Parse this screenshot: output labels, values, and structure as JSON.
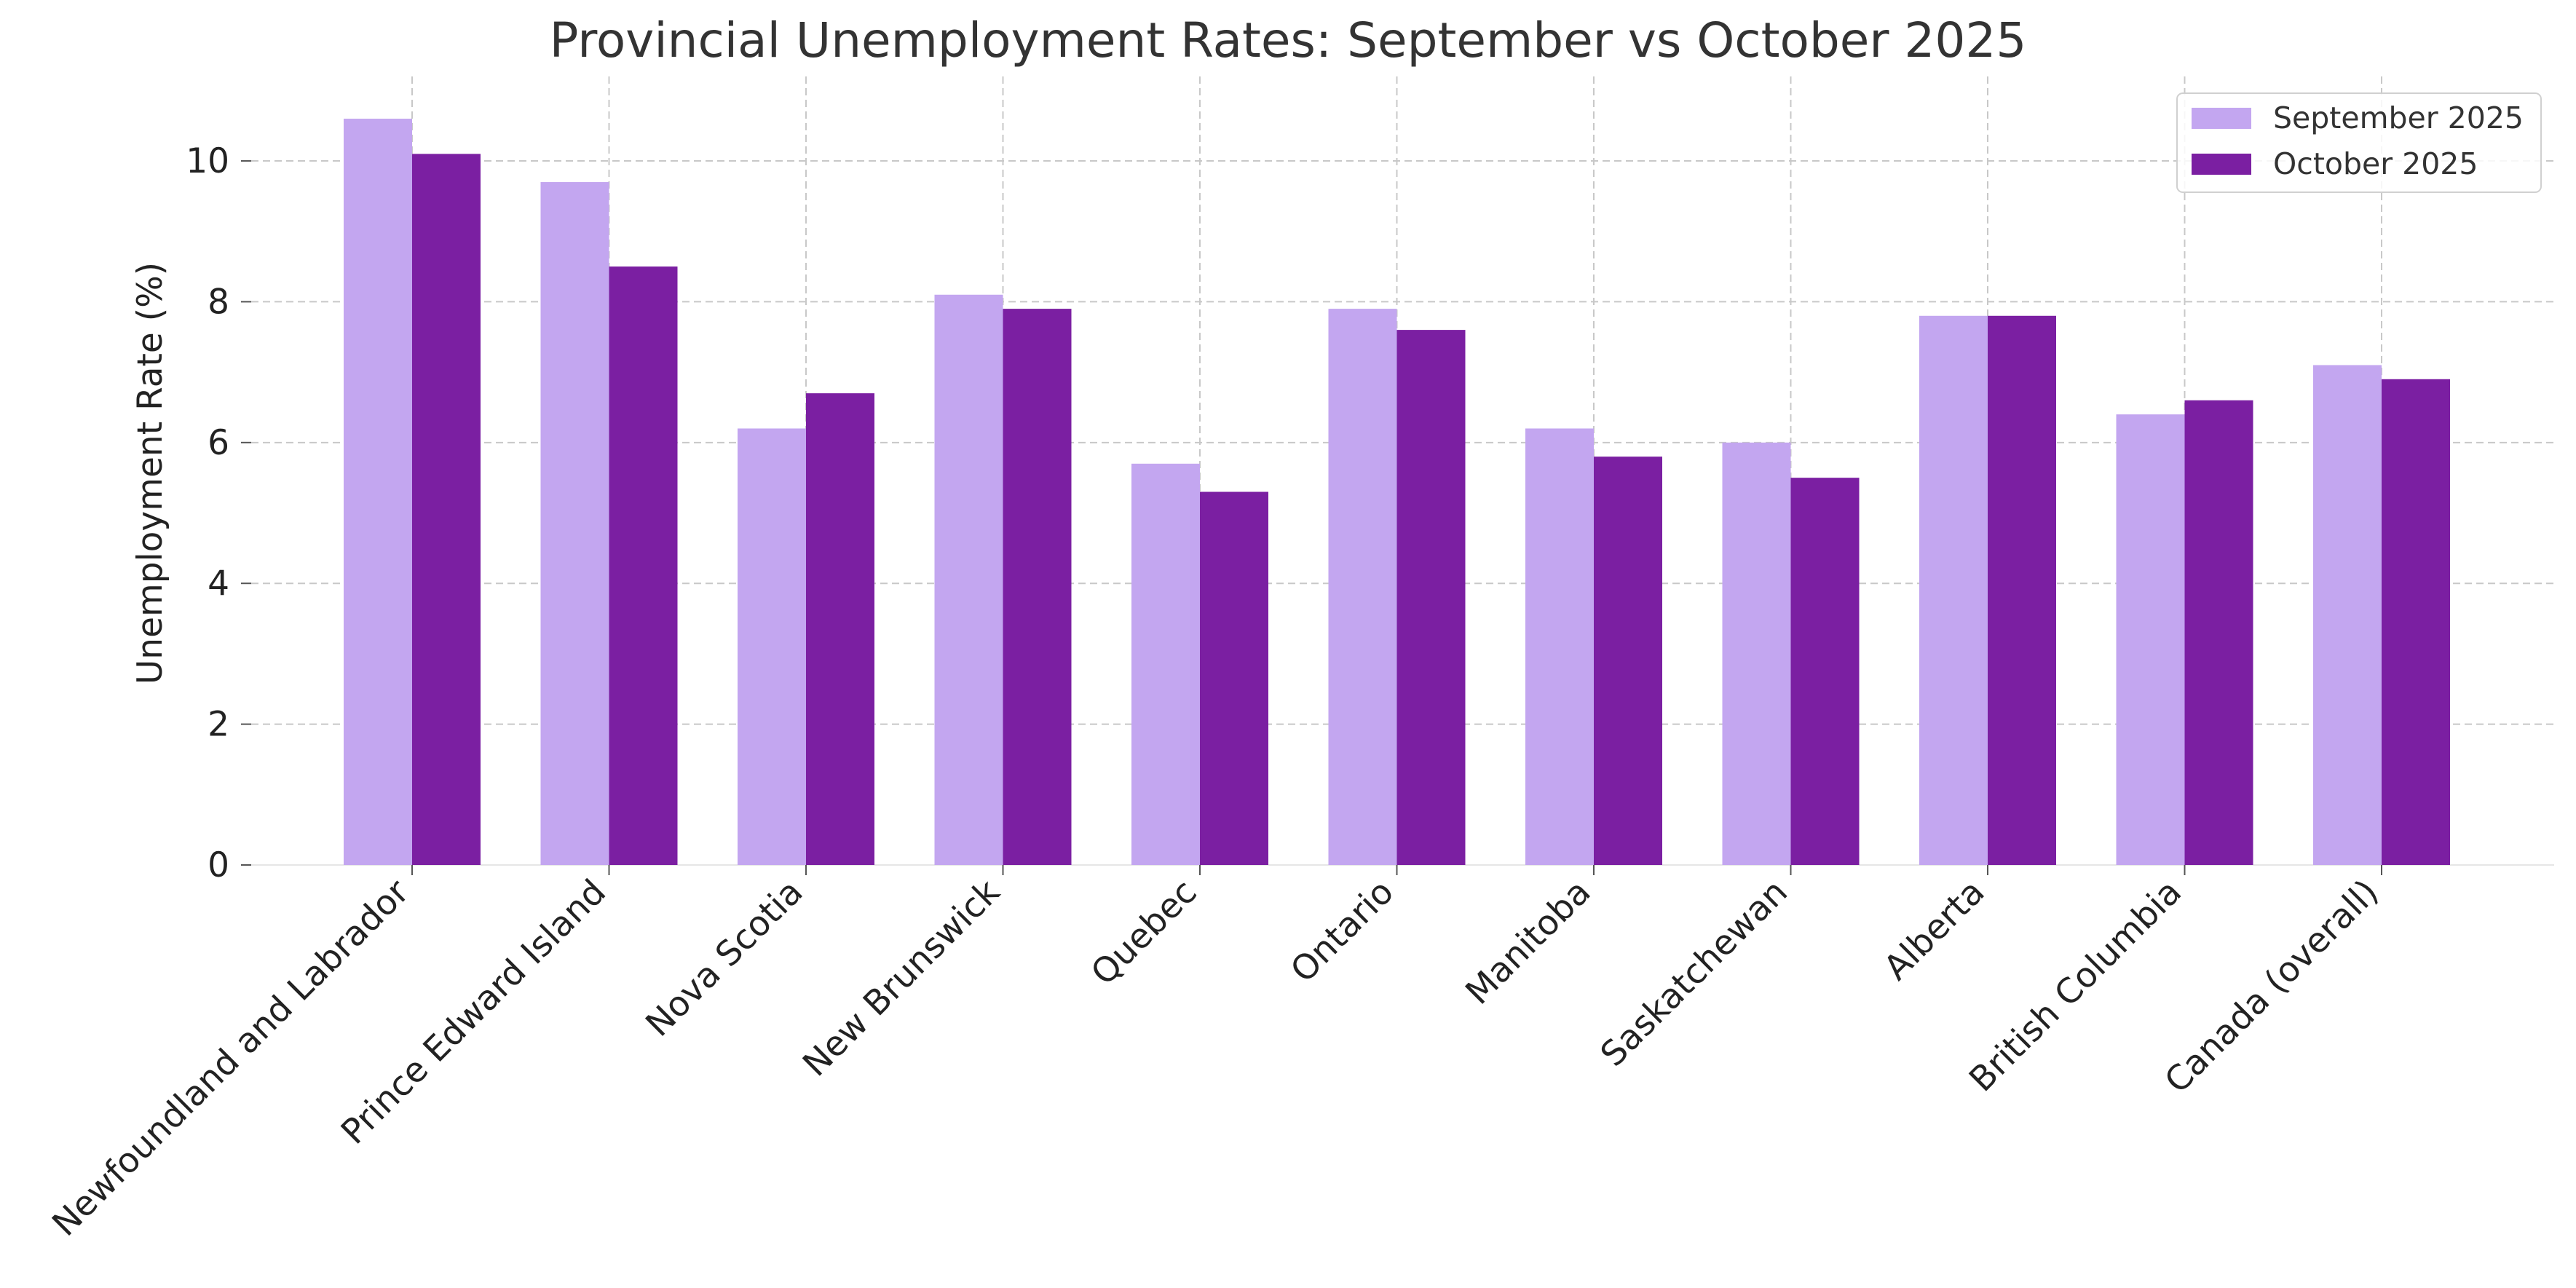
{
  "chart_data": {
    "type": "bar",
    "title": "Provincial Unemployment Rates: September vs October 2025",
    "xlabel": "",
    "ylabel": "Unemployment Rate (%)",
    "ylim": [
      0,
      11.2
    ],
    "yticks": [
      0,
      2,
      4,
      6,
      8,
      10
    ],
    "grid": true,
    "legend_position": "top-right",
    "categories": [
      "Newfoundland and Labrador",
      "Prince Edward Island",
      "Nova Scotia",
      "New Brunswick",
      "Quebec",
      "Ontario",
      "Manitoba",
      "Saskatchewan",
      "Alberta",
      "British Columbia",
      "Canada (overall)"
    ],
    "series": [
      {
        "name": "September 2025",
        "color": "#c3a6f0",
        "values": [
          10.6,
          9.7,
          6.2,
          8.1,
          5.7,
          7.9,
          6.2,
          6.0,
          7.8,
          6.4,
          7.1
        ]
      },
      {
        "name": "October 2025",
        "color": "#7b1fa2",
        "values": [
          10.1,
          8.5,
          6.7,
          7.9,
          5.3,
          7.6,
          5.8,
          5.5,
          7.8,
          6.6,
          6.9
        ]
      }
    ]
  }
}
